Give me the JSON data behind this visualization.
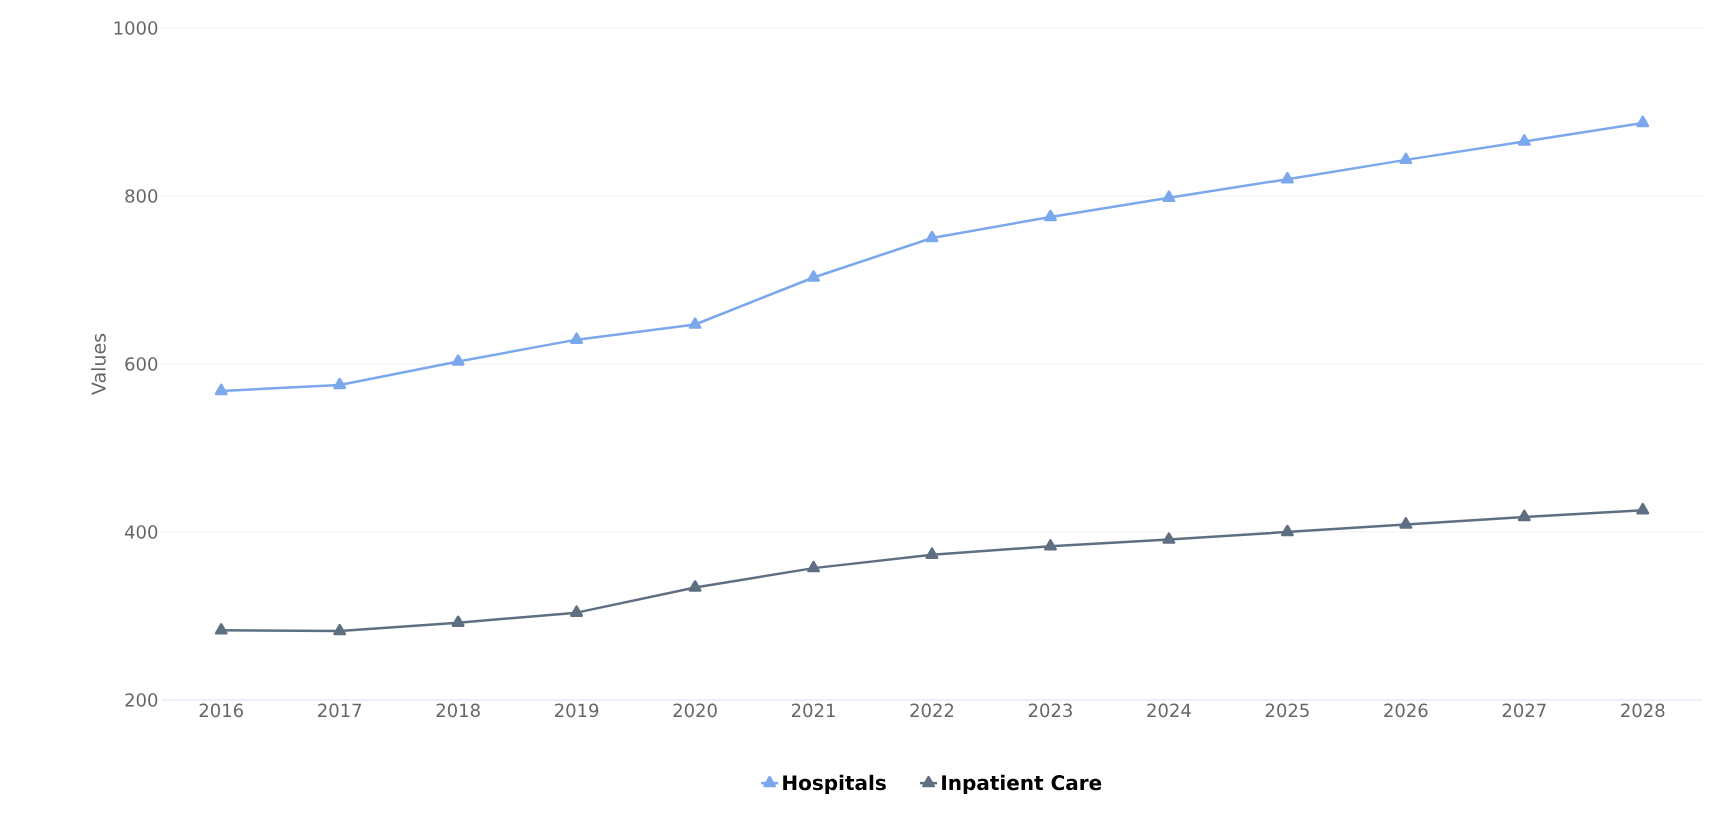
{
  "chart_data": {
    "type": "line",
    "ylabel": "Values",
    "categories": [
      "2016",
      "2017",
      "2018",
      "2019",
      "2020",
      "2021",
      "2022",
      "2023",
      "2024",
      "2025",
      "2026",
      "2027",
      "2028"
    ],
    "series": [
      {
        "name": "Hospitals",
        "color": "#7ba7ec",
        "values": [
          568,
          575,
          603,
          629,
          647,
          703,
          750,
          775,
          798,
          820,
          843,
          865,
          887
        ]
      },
      {
        "name": "Inpatient Care",
        "color": "#5f6f82",
        "values": [
          283,
          282,
          292,
          304,
          334,
          357,
          373,
          383,
          391,
          400,
          409,
          418,
          426
        ]
      }
    ],
    "ylim": [
      200,
      1000
    ],
    "yticks": [
      200,
      400,
      600,
      800,
      1000
    ],
    "grid": "y",
    "legend": "bottom",
    "marker": "triangle",
    "line_style": "solid"
  }
}
